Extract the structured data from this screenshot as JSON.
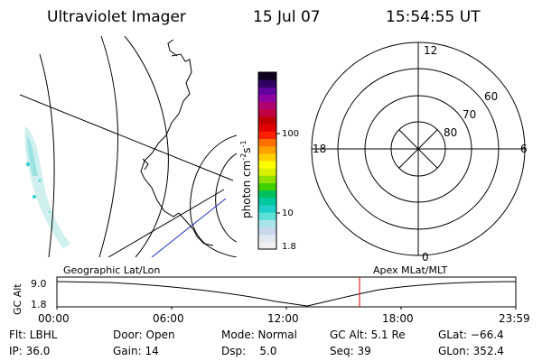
{
  "header": {
    "instrument": "Ultraviolet Imager",
    "date": "15 Jul 07",
    "time": "15:54:55 UT"
  },
  "colorbar": {
    "label_prefix": "photon cm",
    "label_exp1": "-2",
    "label_mid": "s",
    "label_exp2": "-1",
    "ticks": [
      "100",
      "10",
      "1.8"
    ],
    "colors": [
      "#f0f0f0",
      "#e2e8f0",
      "#c9d8ec",
      "#a8e4e8",
      "#5ce0d8",
      "#20d0c8",
      "#00c8a0",
      "#00c060",
      "#40d000",
      "#90e000",
      "#d8f000",
      "#ffff00",
      "#ffd000",
      "#ffa000",
      "#ff7000",
      "#ff2000",
      "#e00000",
      "#c00000",
      "#c00040",
      "#b00070",
      "#9000a0",
      "#6000a0",
      "#300060",
      "#100020"
    ]
  },
  "polar": {
    "mlt_labels": {
      "top": "12",
      "right": "6",
      "bottom": "0",
      "left": "18"
    },
    "lat_labels": [
      "60",
      "70",
      "80"
    ]
  },
  "altitude_plot": {
    "y_axis_label": "GC Alt",
    "y_ticks": [
      "9.0",
      "1.8"
    ],
    "left_caption": "Geographic Lat/Lon",
    "right_caption": "Apex MLat/MLT",
    "x_ticks": [
      "00:00",
      "06:00",
      "12:00",
      "18:00",
      "23:59"
    ]
  },
  "info": {
    "col1": [
      "Flt: LBHL",
      "IP: 36.0"
    ],
    "col2": [
      "Door: Open",
      "Gain: 14"
    ],
    "col3": [
      "Mode: Normal",
      "Dsp:    5.0"
    ],
    "col4": [
      "GC Alt: 5.1 Re",
      "Seq: 39"
    ],
    "col5": [
      "GLat: −66.4",
      "GLon: 352.4"
    ]
  }
}
